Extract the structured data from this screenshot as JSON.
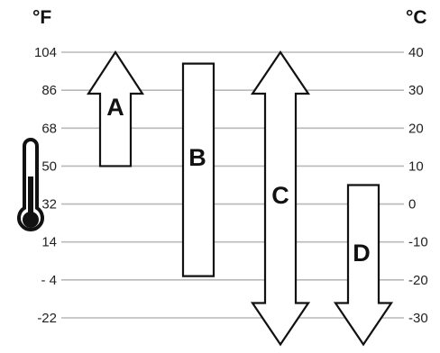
{
  "units": {
    "left": "°F",
    "right": "°C"
  },
  "fahrenheit_ticks": [
    "104",
    "86",
    "68",
    "50",
    "32",
    "14",
    "- 4",
    "-22"
  ],
  "celsius_ticks": [
    "40",
    "30",
    "20",
    "10",
    "0",
    "-10",
    "-20",
    "-30"
  ],
  "icon": "thermometer-icon",
  "bars": [
    {
      "label": "A",
      "shape": "arrow-up",
      "range_c": [
        10,
        40
      ]
    },
    {
      "label": "B",
      "shape": "rectangle",
      "range_c": [
        -19,
        37
      ]
    },
    {
      "label": "C",
      "shape": "arrow-both",
      "range_c": [
        -37,
        40
      ]
    },
    {
      "label": "D",
      "shape": "arrow-down",
      "range_c": [
        -37,
        5
      ]
    }
  ]
}
